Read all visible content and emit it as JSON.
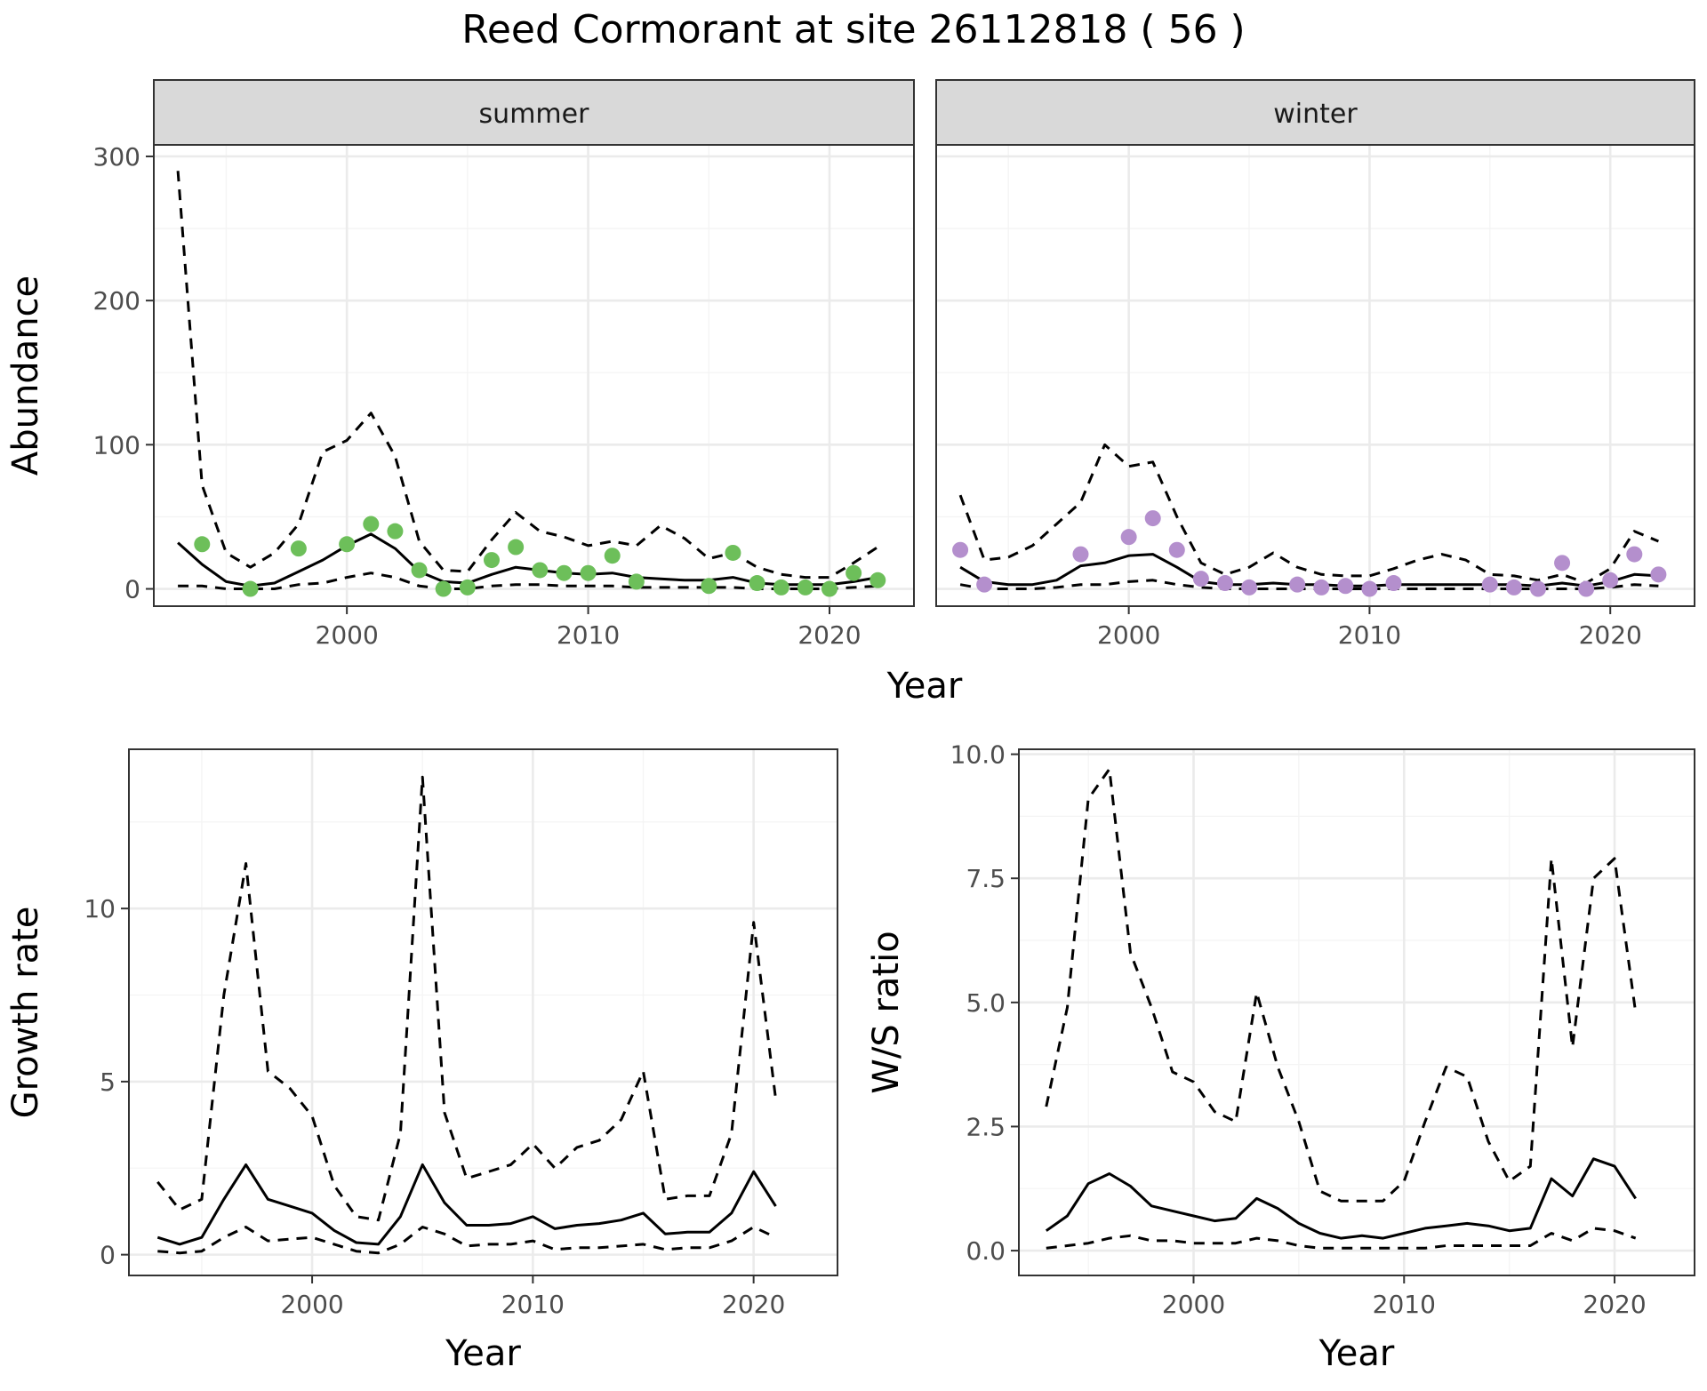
{
  "title": "Reed Cormorant at site 26112818 ( 56 )",
  "colors": {
    "summer_points": "#6dbf5a",
    "winter_points": "#b48fcd",
    "line": "#000000",
    "strip_bg": "#d9d9d9",
    "grid_major": "#ebebeb",
    "grid_minor": "#f4f4f4"
  },
  "chart_data": [
    {
      "type": "line",
      "panel": "summer",
      "strip_label": "summer",
      "xlabel": "Year",
      "ylabel": "Abundance",
      "xlim": [
        1992,
        2023.5
      ],
      "ylim": [
        -12,
        308
      ],
      "x_ticks": [
        2000,
        2010,
        2020
      ],
      "y_ticks": [
        0,
        100,
        200,
        300
      ],
      "grid": true,
      "series": [
        {
          "style": "solid",
          "x": [
            1993,
            1994,
            1995,
            1996,
            1997,
            1998,
            1999,
            2000,
            2001,
            2002,
            2003,
            2004,
            2005,
            2006,
            2007,
            2008,
            2009,
            2010,
            2011,
            2012,
            2013,
            2014,
            2015,
            2016,
            2017,
            2018,
            2019,
            2020,
            2021,
            2022
          ],
          "values": [
            32,
            17,
            5,
            2,
            4,
            12,
            20,
            30,
            38,
            28,
            12,
            5,
            4,
            10,
            15,
            13,
            11,
            10,
            11,
            8,
            7,
            6,
            6,
            8,
            4,
            3,
            3,
            3,
            5,
            8
          ]
        },
        {
          "style": "dashed",
          "x": [
            1993,
            1994,
            1995,
            1996,
            1997,
            1998,
            1999,
            2000,
            2001,
            2002,
            2003,
            2004,
            2005,
            2006,
            2007,
            2008,
            2009,
            2010,
            2011,
            2012,
            2013,
            2014,
            2015,
            2016,
            2017,
            2018,
            2019,
            2020,
            2021,
            2022
          ],
          "values": [
            290,
            72,
            25,
            15,
            25,
            45,
            95,
            103,
            122,
            92,
            33,
            13,
            12,
            34,
            53,
            40,
            36,
            30,
            33,
            30,
            44,
            35,
            21,
            25,
            15,
            10,
            8,
            8,
            18,
            29
          ]
        },
        {
          "style": "dashed",
          "x": [
            1993,
            1994,
            1995,
            1996,
            1997,
            1998,
            1999,
            2000,
            2001,
            2002,
            2003,
            2004,
            2005,
            2006,
            2007,
            2008,
            2009,
            2010,
            2011,
            2012,
            2013,
            2014,
            2015,
            2016,
            2017,
            2018,
            2019,
            2020,
            2021,
            2022
          ],
          "values": [
            2,
            2,
            0,
            0,
            0,
            3,
            4,
            8,
            11,
            8,
            2,
            0,
            0,
            2,
            3,
            3,
            2,
            2,
            2,
            1,
            1,
            1,
            1,
            1,
            0,
            0,
            0,
            0,
            1,
            2
          ]
        },
        {
          "style": "points",
          "x": [
            1994,
            1996,
            1998,
            2000,
            2001,
            2002,
            2003,
            2004,
            2005,
            2006,
            2007,
            2008,
            2009,
            2010,
            2011,
            2012,
            2015,
            2016,
            2017,
            2018,
            2019,
            2020,
            2021,
            2022
          ],
          "values": [
            31,
            0,
            28,
            31,
            45,
            40,
            13,
            0,
            1,
            20,
            29,
            13,
            11,
            11,
            23,
            5,
            2,
            25,
            4,
            1,
            1,
            0,
            11,
            6
          ]
        }
      ]
    },
    {
      "type": "line",
      "panel": "winter",
      "strip_label": "winter",
      "xlabel": "Year",
      "ylabel": "Abundance",
      "xlim": [
        1992,
        2023.5
      ],
      "ylim": [
        -12,
        308
      ],
      "x_ticks": [
        2000,
        2010,
        2020
      ],
      "y_ticks": [
        0,
        100,
        200,
        300
      ],
      "grid": true,
      "series": [
        {
          "style": "solid",
          "x": [
            1993,
            1994,
            1995,
            1996,
            1997,
            1998,
            1999,
            2000,
            2001,
            2002,
            2003,
            2004,
            2005,
            2006,
            2007,
            2008,
            2009,
            2010,
            2011,
            2012,
            2013,
            2014,
            2015,
            2016,
            2017,
            2018,
            2019,
            2020,
            2021,
            2022
          ],
          "values": [
            15,
            5,
            3,
            3,
            6,
            16,
            18,
            23,
            24,
            15,
            5,
            3,
            3,
            4,
            3,
            3,
            2,
            2,
            3,
            3,
            3,
            3,
            3,
            3,
            2,
            4,
            2,
            5,
            10,
            9
          ]
        },
        {
          "style": "dashed",
          "x": [
            1993,
            1994,
            1995,
            1996,
            1997,
            1998,
            1999,
            2000,
            2001,
            2002,
            2003,
            2004,
            2005,
            2006,
            2007,
            2008,
            2009,
            2010,
            2011,
            2012,
            2013,
            2014,
            2015,
            2016,
            2017,
            2018,
            2019,
            2020,
            2021,
            2022
          ],
          "values": [
            65,
            20,
            22,
            30,
            45,
            60,
            100,
            85,
            88,
            50,
            18,
            10,
            15,
            25,
            15,
            10,
            9,
            9,
            14,
            20,
            24,
            20,
            10,
            9,
            6,
            10,
            4,
            14,
            40,
            33
          ]
        },
        {
          "style": "dashed",
          "x": [
            1993,
            1994,
            1995,
            1996,
            1997,
            1998,
            1999,
            2000,
            2001,
            2002,
            2003,
            2004,
            2005,
            2006,
            2007,
            2008,
            2009,
            2010,
            2011,
            2012,
            2013,
            2014,
            2015,
            2016,
            2017,
            2018,
            2019,
            2020,
            2021,
            2022
          ],
          "values": [
            3,
            0,
            0,
            0,
            1,
            3,
            3,
            5,
            6,
            3,
            1,
            0,
            0,
            0,
            0,
            0,
            0,
            0,
            0,
            0,
            0,
            0,
            0,
            0,
            0,
            0,
            0,
            1,
            3,
            2
          ]
        },
        {
          "style": "points",
          "x": [
            1993,
            1994,
            1998,
            2000,
            2001,
            2002,
            2003,
            2004,
            2005,
            2007,
            2008,
            2009,
            2010,
            2011,
            2015,
            2016,
            2017,
            2018,
            2019,
            2020,
            2021,
            2022
          ],
          "values": [
            27,
            3,
            24,
            36,
            49,
            27,
            7,
            4,
            1,
            3,
            1,
            2,
            0,
            4,
            3,
            1,
            0,
            18,
            0,
            6,
            24,
            10
          ]
        }
      ]
    },
    {
      "type": "line",
      "panel": "growth",
      "xlabel": "Year",
      "ylabel": "Growth rate",
      "xlim": [
        1991.7,
        2023.8
      ],
      "ylim": [
        -0.6,
        14.6
      ],
      "x_ticks": [
        2000,
        2010,
        2020
      ],
      "y_ticks": [
        0,
        5,
        10
      ],
      "grid": true,
      "series": [
        {
          "style": "solid",
          "x": [
            1993,
            1994,
            1995,
            1996,
            1997,
            1998,
            1999,
            2000,
            2001,
            2002,
            2003,
            2004,
            2005,
            2006,
            2007,
            2008,
            2009,
            2010,
            2011,
            2012,
            2013,
            2014,
            2015,
            2016,
            2017,
            2018,
            2019,
            2020,
            2021
          ],
          "values": [
            0.5,
            0.3,
            0.5,
            1.6,
            2.6,
            1.6,
            1.4,
            1.2,
            0.7,
            0.35,
            0.3,
            1.1,
            2.6,
            1.5,
            0.85,
            0.85,
            0.9,
            1.1,
            0.75,
            0.85,
            0.9,
            1.0,
            1.2,
            0.6,
            0.65,
            0.65,
            1.2,
            2.4,
            1.4
          ]
        },
        {
          "style": "dashed",
          "x": [
            1993,
            1994,
            1995,
            1996,
            1997,
            1998,
            1999,
            2000,
            2001,
            2002,
            2003,
            2004,
            2005,
            2006,
            2007,
            2008,
            2009,
            2010,
            2011,
            2012,
            2013,
            2014,
            2015,
            2016,
            2017,
            2018,
            2019,
            2020,
            2021
          ],
          "values": [
            2.1,
            1.3,
            1.6,
            7.5,
            11.3,
            5.3,
            4.8,
            4.0,
            2.0,
            1.1,
            1.0,
            3.5,
            13.8,
            4.1,
            2.2,
            2.4,
            2.6,
            3.2,
            2.5,
            3.1,
            3.3,
            3.9,
            5.3,
            1.6,
            1.7,
            1.7,
            3.5,
            9.6,
            4.5
          ]
        },
        {
          "style": "dashed",
          "x": [
            1993,
            1994,
            1995,
            1996,
            1997,
            1998,
            1999,
            2000,
            2001,
            2002,
            2003,
            2004,
            2005,
            2006,
            2007,
            2008,
            2009,
            2010,
            2011,
            2012,
            2013,
            2014,
            2015,
            2016,
            2017,
            2018,
            2019,
            2020,
            2021
          ],
          "values": [
            0.1,
            0.05,
            0.1,
            0.5,
            0.8,
            0.4,
            0.45,
            0.5,
            0.3,
            0.1,
            0.05,
            0.3,
            0.8,
            0.6,
            0.25,
            0.3,
            0.3,
            0.4,
            0.15,
            0.2,
            0.2,
            0.25,
            0.3,
            0.15,
            0.2,
            0.2,
            0.4,
            0.8,
            0.5
          ]
        }
      ]
    },
    {
      "type": "line",
      "panel": "ws_ratio",
      "xlabel": "Year",
      "ylabel": "W/S ratio",
      "xlim": [
        1991.7,
        2023.8
      ],
      "ylim": [
        -0.5,
        10.1
      ],
      "x_ticks": [
        2000,
        2010,
        2020
      ],
      "y_ticks": [
        0.0,
        2.5,
        5.0,
        7.5,
        10.0
      ],
      "y_tick_labels": [
        "0.0",
        "2.5",
        "5.0",
        "7.5",
        "10.0"
      ],
      "grid": true,
      "series": [
        {
          "style": "solid",
          "x": [
            1993,
            1994,
            1995,
            1996,
            1997,
            1998,
            1999,
            2000,
            2001,
            2002,
            2003,
            2004,
            2005,
            2006,
            2007,
            2008,
            2009,
            2010,
            2011,
            2012,
            2013,
            2014,
            2015,
            2016,
            2017,
            2018,
            2019,
            2020,
            2021
          ],
          "values": [
            0.4,
            0.7,
            1.35,
            1.55,
            1.3,
            0.9,
            0.8,
            0.7,
            0.6,
            0.65,
            1.05,
            0.85,
            0.55,
            0.35,
            0.25,
            0.3,
            0.25,
            0.35,
            0.45,
            0.5,
            0.55,
            0.5,
            0.4,
            0.45,
            1.45,
            1.1,
            1.85,
            1.7,
            1.05
          ]
        },
        {
          "style": "dashed",
          "x": [
            1993,
            1994,
            1995,
            1996,
            1997,
            1998,
            1999,
            2000,
            2001,
            2002,
            2003,
            2004,
            2005,
            2006,
            2007,
            2008,
            2009,
            2010,
            2011,
            2012,
            2013,
            2014,
            2015,
            2016,
            2017,
            2018,
            2019,
            2020,
            2021
          ],
          "values": [
            2.9,
            4.9,
            9.1,
            9.7,
            6.0,
            4.9,
            3.6,
            3.4,
            2.8,
            2.6,
            5.2,
            3.7,
            2.6,
            1.2,
            1.0,
            1.0,
            1.0,
            1.4,
            2.6,
            3.7,
            3.5,
            2.2,
            1.4,
            1.7,
            7.9,
            4.1,
            7.5,
            7.9,
            4.8
          ]
        },
        {
          "style": "dashed",
          "x": [
            1993,
            1994,
            1995,
            1996,
            1997,
            1998,
            1999,
            2000,
            2001,
            2002,
            2003,
            2004,
            2005,
            2006,
            2007,
            2008,
            2009,
            2010,
            2011,
            2012,
            2013,
            2014,
            2015,
            2016,
            2017,
            2018,
            2019,
            2020,
            2021
          ],
          "values": [
            0.05,
            0.1,
            0.15,
            0.25,
            0.3,
            0.2,
            0.2,
            0.15,
            0.15,
            0.15,
            0.25,
            0.2,
            0.1,
            0.05,
            0.05,
            0.05,
            0.05,
            0.05,
            0.05,
            0.1,
            0.1,
            0.1,
            0.1,
            0.1,
            0.35,
            0.2,
            0.45,
            0.4,
            0.25
          ]
        }
      ]
    }
  ]
}
